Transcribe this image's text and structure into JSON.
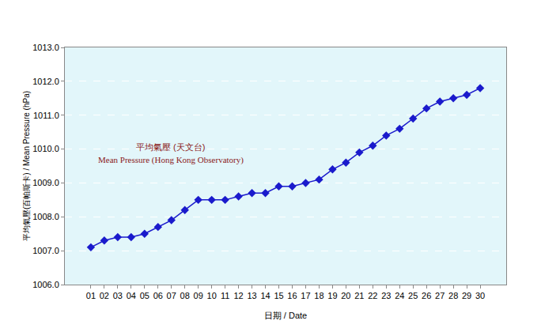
{
  "chart_data": {
    "type": "line",
    "title": "平均氣壓 (天文台)",
    "subtitle": "Mean Pressure (Hong Kong Observatory)",
    "x_label": "日期 / Date",
    "y_label": "平均氣壓(百帕斯卡) / Mean Pressure (hPa)",
    "categories": [
      "01",
      "02",
      "03",
      "04",
      "05",
      "06",
      "07",
      "08",
      "09",
      "10",
      "11",
      "12",
      "13",
      "14",
      "15",
      "16",
      "17",
      "18",
      "19",
      "20",
      "21",
      "22",
      "23",
      "24",
      "25",
      "26",
      "27",
      "28",
      "29",
      "30"
    ],
    "values": [
      1007.1,
      1007.3,
      1007.4,
      1007.4,
      1007.5,
      1007.7,
      1007.9,
      1008.2,
      1008.5,
      1008.5,
      1008.5,
      1008.6,
      1008.7,
      1008.7,
      1008.9,
      1008.9,
      1009.0,
      1009.1,
      1009.4,
      1009.6,
      1009.9,
      1010.1,
      1010.4,
      1010.6,
      1010.9,
      1011.2,
      1011.4,
      1011.5,
      1011.6,
      1011.8
    ],
    "color": "#1a1acc",
    "marker": "diamond",
    "line_style": "solid",
    "ylim": [
      1006,
      1013
    ],
    "yticks": [
      {
        "value": 1006,
        "label": "1006.0"
      },
      {
        "value": 1007,
        "label": "1007.0"
      },
      {
        "value": 1008,
        "label": "1008.0"
      },
      {
        "value": 1009,
        "label": "1009.0"
      },
      {
        "value": 1010,
        "label": "1010.0"
      },
      {
        "value": 1011,
        "label": "1011.0"
      },
      {
        "value": 1012,
        "label": "1012.0"
      },
      {
        "value": 1013,
        "label": "1013.0"
      }
    ],
    "grid": true
  }
}
